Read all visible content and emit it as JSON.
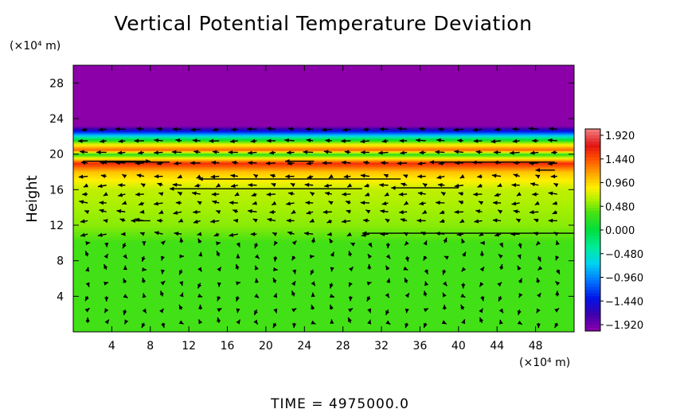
{
  "chart_data": {
    "type": "heatmap",
    "title": "Vertical Potential Temperature Deviation",
    "ylabel": "Height",
    "y_unit_label": "(×10⁴ m)",
    "x_unit_label": "(×10⁴ m)",
    "xlim": [
      0,
      52
    ],
    "ylim": [
      0,
      30
    ],
    "x_ticks": [
      4,
      8,
      12,
      16,
      20,
      24,
      28,
      32,
      36,
      40,
      44,
      48
    ],
    "y_ticks": [
      4,
      8,
      12,
      16,
      20,
      24,
      28
    ],
    "x_tick_labels": [
      "4",
      "8",
      "12",
      "16",
      "20",
      "24",
      "28",
      "32",
      "36",
      "40",
      "44",
      "48"
    ],
    "y_tick_labels": [
      "4",
      "8",
      "12",
      "16",
      "20",
      "24",
      "28"
    ],
    "colorbar": {
      "min": -1.92,
      "max": 1.92,
      "tick_labels": [
        "1.920",
        "1.440",
        "0.960",
        "0.480",
        "0.000",
        "−0.480",
        "−0.960",
        "−1.440",
        "−1.920"
      ]
    },
    "field_profile": [
      {
        "height": 0,
        "value": 0.3
      },
      {
        "height": 10,
        "value": 0.3
      },
      {
        "height": 12,
        "value": 0.48
      },
      {
        "height": 16,
        "value": 0.62
      },
      {
        "height": 18,
        "value": 0.95
      },
      {
        "height": 19,
        "value": 1.5
      },
      {
        "height": 20,
        "value": 0.2
      },
      {
        "height": 20.5,
        "value": 1.3
      },
      {
        "height": 21.3,
        "value": 0.55
      },
      {
        "height": 22,
        "value": -0.5
      },
      {
        "height": 22.6,
        "value": -1.3
      },
      {
        "height": 23.2,
        "value": -1.92
      },
      {
        "height": 30,
        "value": -1.92
      }
    ],
    "footer": "TIME  =  4975000.0"
  }
}
